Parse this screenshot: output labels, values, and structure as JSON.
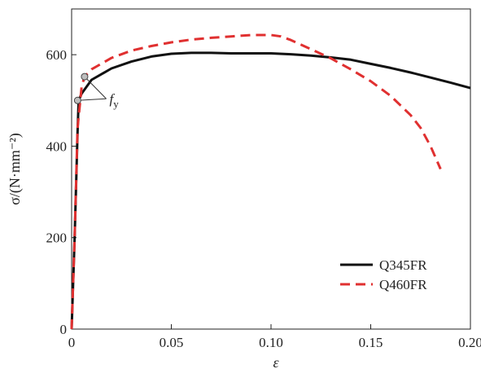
{
  "chart_data": {
    "type": "line",
    "title": "",
    "xlabel": "ε",
    "ylabel": "σ/(N·mm⁻²)",
    "xlim": [
      0,
      0.2
    ],
    "ylim": [
      0,
      700
    ],
    "x_ticks": [
      0,
      0.05,
      0.1,
      0.15,
      0.2
    ],
    "x_tick_labels": [
      "0",
      "0.05",
      "0.10",
      "0.15",
      "0.20"
    ],
    "y_ticks": [
      0,
      200,
      400,
      600
    ],
    "y_tick_labels": [
      "0",
      "200",
      "400",
      "600"
    ],
    "grid": false,
    "legend_position": "bottom-right",
    "series": [
      {
        "name": "Q345FR",
        "color": "#111111",
        "style": "solid",
        "x": [
          0,
          0.0015,
          0.003,
          0.0035,
          0.005,
          0.01,
          0.02,
          0.03,
          0.04,
          0.05,
          0.06,
          0.07,
          0.08,
          0.09,
          0.1,
          0.11,
          0.12,
          0.13,
          0.14,
          0.15,
          0.16,
          0.17,
          0.18,
          0.19,
          0.2
        ],
        "y": [
          0,
          200,
          430,
          500,
          515,
          545,
          570,
          585,
          596,
          602,
          604,
          604,
          603,
          603,
          603,
          601,
          598,
          594,
          589,
          580,
          571,
          561,
          550,
          539,
          527
        ]
      },
      {
        "name": "Q460FR",
        "color": "#e03030",
        "style": "dashed",
        "x": [
          0,
          0.0015,
          0.003,
          0.005,
          0.0065,
          0.01,
          0.02,
          0.03,
          0.04,
          0.05,
          0.06,
          0.07,
          0.08,
          0.09,
          0.1,
          0.105,
          0.11,
          0.12,
          0.13,
          0.14,
          0.15,
          0.16,
          0.17,
          0.175,
          0.18,
          0.185
        ],
        "y": [
          0,
          200,
          440,
          530,
          552,
          568,
          593,
          609,
          619,
          627,
          633,
          637,
          640,
          643,
          643,
          640,
          632,
          612,
          592,
          568,
          542,
          510,
          468,
          440,
          400,
          350
        ]
      }
    ],
    "annotations": [
      {
        "text": "f",
        "subscript": "y",
        "points": [
          [
            0.003,
            500
          ],
          [
            0.0065,
            552
          ]
        ]
      }
    ]
  }
}
